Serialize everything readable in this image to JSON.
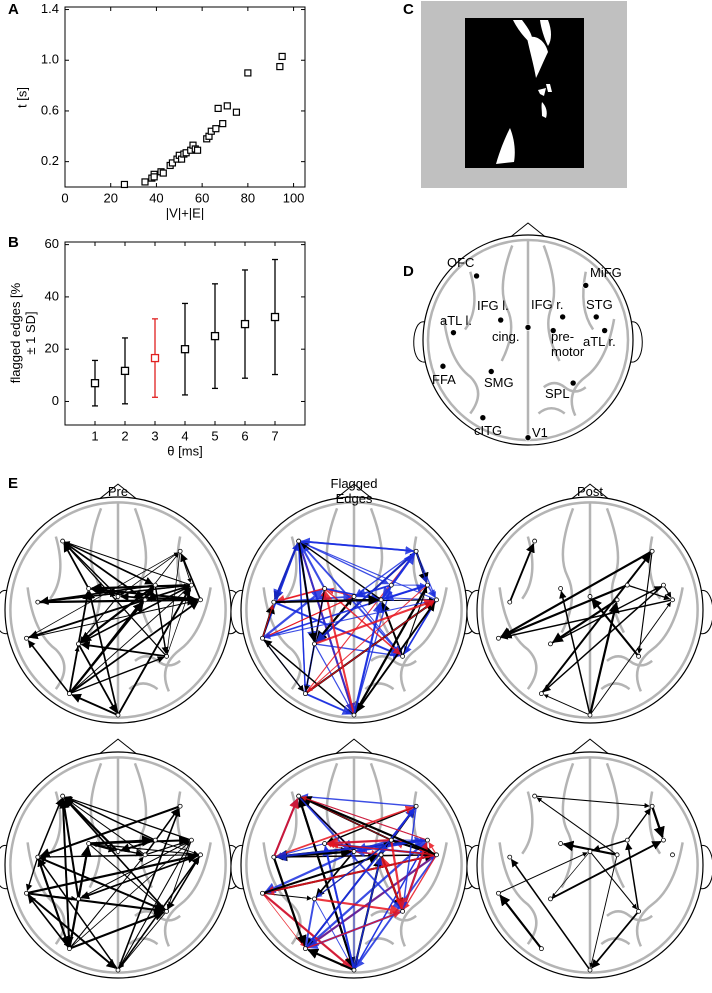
{
  "panel_labels": [
    "A",
    "B",
    "C",
    "D",
    "E"
  ],
  "chart_data": [
    {
      "type": "scatter",
      "x_label": "|V|+|E|",
      "y_label": "t [s]",
      "x": [
        26,
        35,
        38,
        39,
        39,
        42,
        43,
        46,
        47,
        49,
        50,
        51,
        52,
        53,
        55,
        56,
        57,
        58,
        62,
        63,
        64,
        66,
        67,
        69,
        71,
        75,
        80,
        94,
        95
      ],
      "values": [
        0.02,
        0.04,
        0.07,
        0.1,
        0.08,
        0.12,
        0.11,
        0.17,
        0.19,
        0.22,
        0.25,
        0.22,
        0.26,
        0.27,
        0.29,
        0.33,
        0.3,
        0.29,
        0.38,
        0.4,
        0.44,
        0.46,
        0.62,
        0.5,
        0.64,
        0.59,
        0.9,
        0.95,
        1.03
      ],
      "color": "#000000",
      "xlim": [
        0,
        105
      ],
      "ylim": [
        0,
        1.42
      ],
      "xticks": [
        0,
        20,
        40,
        60,
        80,
        100
      ],
      "yticks": [
        0.2,
        0.6,
        {
          "value": 1,
          "label": "1.0"
        },
        1.4
      ]
    },
    {
      "type": "errorbar",
      "x_label": "θ [ms]",
      "y_label": "flagged edges [% ± 1 SD]",
      "x": [
        1,
        2,
        3,
        4,
        5,
        6,
        7
      ],
      "values": [
        7,
        11.7,
        16.6,
        20,
        25,
        29.6,
        32.3
      ],
      "errors": [
        8.7,
        12.6,
        15,
        17.5,
        20,
        20.7,
        22
      ],
      "colors": [
        "#000000",
        "#000000",
        "#e02020",
        "#000000",
        "#000000",
        "#000000",
        "#000000"
      ],
      "xlim": [
        0,
        8
      ],
      "ylim": [
        -9,
        61
      ],
      "xticks": [
        1,
        2,
        3,
        4,
        5,
        6,
        7
      ],
      "yticks": [
        0,
        20,
        40,
        60
      ]
    }
  ],
  "brain_regions": [
    "OFC",
    "MiFG",
    "IFG l.",
    "IFG r.",
    "STG",
    "aTL l.",
    "cing.",
    "pre-motor",
    "aTL r.",
    "FFA",
    "SMG",
    "SPL",
    "cITG",
    "V1"
  ],
  "panel_e_titles": [
    "Pre",
    "Flagged Edges",
    "Post"
  ]
}
